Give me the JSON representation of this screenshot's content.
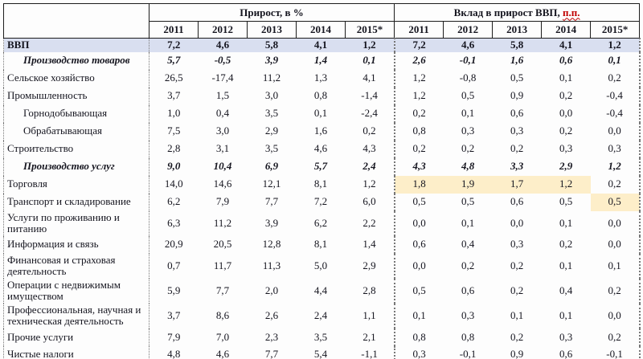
{
  "header": {
    "group1": "Прирост, в %",
    "group2_main": "Вклад в прирост ВВП, ",
    "group2_suffix": "п.п.",
    "years": [
      "2011",
      "2012",
      "2013",
      "2014",
      "2015*"
    ]
  },
  "colors": {
    "gdp_row_bg": "#d9dff0",
    "highlight_bg": "#fdeec9",
    "suffix_red": "#c00000"
  },
  "rows": [
    {
      "label": "ВВП",
      "style": "gdp",
      "indent": 0,
      "growth": [
        "7,2",
        "4,6",
        "5,8",
        "4,1",
        "1,2"
      ],
      "contrib": [
        "7,2",
        "4,6",
        "5,8",
        "4,1",
        "1,2"
      ]
    },
    {
      "label": "Производство товаров",
      "style": "bold-italic",
      "indent": 1,
      "growth": [
        "5,7",
        "-0,5",
        "3,9",
        "1,4",
        "0,1"
      ],
      "contrib": [
        "2,6",
        "-0,1",
        "1,6",
        "0,6",
        "0,1"
      ]
    },
    {
      "label": "Сельское хозяйство",
      "indent": 0,
      "growth": [
        "26,5",
        "-17,4",
        "11,2",
        "1,3",
        "4,1"
      ],
      "contrib": [
        "1,2",
        "-0,8",
        "0,5",
        "0,1",
        "0,2"
      ]
    },
    {
      "label": "Промышленность",
      "indent": 0,
      "growth": [
        "3,7",
        "1,5",
        "3,0",
        "0,8",
        "-1,4"
      ],
      "contrib": [
        "1,2",
        "0,5",
        "0,9",
        "0,2",
        "-0,4"
      ]
    },
    {
      "label": "Горнодобывающая",
      "indent": 1,
      "growth": [
        "1,0",
        "0,4",
        "3,5",
        "0,1",
        "-2,4"
      ],
      "contrib": [
        "0,2",
        "0,1",
        "0,6",
        "0,0",
        "-0,4"
      ]
    },
    {
      "label": "Обрабатывающая",
      "indent": 1,
      "growth": [
        "7,5",
        "3,0",
        "2,9",
        "1,6",
        "0,2"
      ],
      "contrib": [
        "0,8",
        "0,3",
        "0,3",
        "0,2",
        "0,0"
      ]
    },
    {
      "label": "Строительство",
      "indent": 0,
      "growth": [
        "2,8",
        "3,1",
        "3,5",
        "4,6",
        "4,3"
      ],
      "contrib": [
        "0,2",
        "0,2",
        "0,2",
        "0,3",
        "0,3"
      ]
    },
    {
      "label": "Производство услуг",
      "style": "bold-italic",
      "indent": 1,
      "growth": [
        "9,0",
        "10,4",
        "6,9",
        "5,7",
        "2,4"
      ],
      "contrib": [
        "4,3",
        "4,8",
        "3,3",
        "2,9",
        "1,2"
      ]
    },
    {
      "label": "Торговля",
      "indent": 0,
      "growth": [
        "14,0",
        "14,6",
        "12,1",
        "8,1",
        "1,2"
      ],
      "contrib": [
        "1,8",
        "1,9",
        "1,7",
        "1,2",
        "0,2"
      ],
      "contrib_highlight": [
        0,
        1,
        2,
        3
      ]
    },
    {
      "label": "Транспорт и складирование",
      "indent": 0,
      "growth": [
        "6,2",
        "7,9",
        "7,7",
        "7,2",
        "6,0"
      ],
      "contrib": [
        "0,5",
        "0,5",
        "0,6",
        "0,5",
        "0,5"
      ],
      "contrib_highlight": [
        4
      ]
    },
    {
      "label": "Услуги по проживанию и питанию",
      "indent": 0,
      "growth": [
        "6,3",
        "11,2",
        "3,9",
        "6,2",
        "2,2"
      ],
      "contrib": [
        "0,0",
        "0,1",
        "0,0",
        "0,1",
        "0,0"
      ]
    },
    {
      "label": "Информация и связь",
      "indent": 0,
      "growth": [
        "20,9",
        "20,5",
        "12,8",
        "8,1",
        "1,4"
      ],
      "contrib": [
        "0,6",
        "0,4",
        "0,3",
        "0,2",
        "0,0"
      ]
    },
    {
      "label": "Финансовая и страховая деятельность",
      "indent": 0,
      "growth": [
        "0,7",
        "11,7",
        "11,3",
        "5,0",
        "2,9"
      ],
      "contrib": [
        "0,0",
        "0,2",
        "0,2",
        "0,1",
        "0,1"
      ]
    },
    {
      "label": "Операции с недвижимым имуществом",
      "indent": 0,
      "growth": [
        "5,9",
        "7,7",
        "2,0",
        "4,4",
        "2,8"
      ],
      "contrib": [
        "0,5",
        "0,6",
        "0,2",
        "0,4",
        "0,2"
      ]
    },
    {
      "label": "Профессиональная, научная и техническая деятельность",
      "indent": 0,
      "growth": [
        "3,7",
        "8,6",
        "2,6",
        "2,4",
        "1,1"
      ],
      "contrib": [
        "0,1",
        "0,3",
        "0,1",
        "0,1",
        "0,0"
      ]
    },
    {
      "label": "Прочие услуги",
      "indent": 0,
      "growth": [
        "7,9",
        "7,0",
        "2,3",
        "3,5",
        "2,1"
      ],
      "contrib": [
        "0,8",
        "0,8",
        "0,2",
        "0,3",
        "0,2"
      ]
    },
    {
      "label": "Чистые налоги",
      "indent": 0,
      "growth": [
        "4,8",
        "4,6",
        "7,7",
        "5,4",
        "-1,1"
      ],
      "contrib": [
        "0,3",
        "-0,1",
        "0,9",
        "0,6",
        "-0,1"
      ]
    }
  ]
}
